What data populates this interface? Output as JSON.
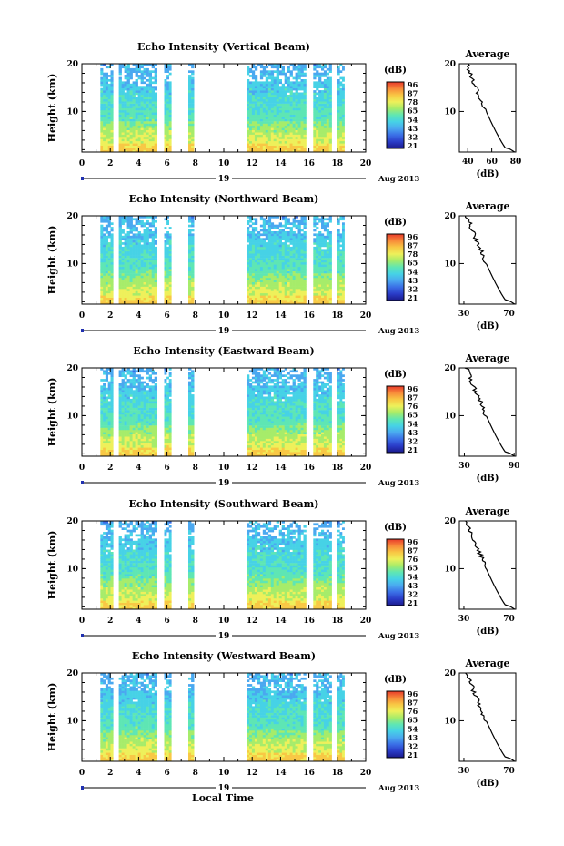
{
  "time_axis": {
    "ticks": [
      "0",
      "2",
      "4",
      "6",
      "8",
      "10",
      "12",
      "14",
      "16",
      "18",
      "20"
    ],
    "day_label": "19",
    "date_label": "Aug 2013",
    "xlabel": "Local Time"
  },
  "colorbar": {
    "unit": "(dB)",
    "palette": [
      "#1a1a8c",
      "#2a3cc8",
      "#3a6ee6",
      "#4aa8f0",
      "#46d2e6",
      "#5ee6b4",
      "#a6ec6a",
      "#eef05a",
      "#f8c844",
      "#f88a3a",
      "#e83a2a"
    ]
  },
  "chart_data": [
    {
      "type": "heatmap",
      "title": "Echo Intensity (Vertical Beam)",
      "ylabel": "Height (km)",
      "x_ticks": [
        0,
        2,
        4,
        6,
        8,
        10,
        12,
        14,
        16,
        18,
        20
      ],
      "xlim": [
        0,
        20
      ],
      "ylim": [
        1.5,
        20
      ],
      "y_ticks": [
        10,
        20
      ],
      "data_intervals_hours": [
        [
          1.3,
          2.2
        ],
        [
          2.6,
          5.3
        ],
        [
          5.8,
          6.3
        ],
        [
          7.5,
          7.9
        ],
        [
          11.6,
          15.8
        ],
        [
          16.3,
          17.6
        ],
        [
          18.0,
          18.5
        ]
      ],
      "colorbar_ticks": [
        "96",
        "87",
        "78",
        "65",
        "54",
        "43",
        "32",
        "21"
      ],
      "average_profile": {
        "title": "Average",
        "xlabel": "(dB)",
        "x_ticks": [
          "40",
          "60",
          "80"
        ],
        "xlim": [
          33,
          80
        ],
        "y_ticks": [
          10,
          20
        ],
        "ylim": [
          1.5,
          20
        ]
      }
    },
    {
      "type": "heatmap",
      "title": "Echo Intensity (Northward Beam)",
      "ylabel": "Height (km)",
      "x_ticks": [
        0,
        2,
        4,
        6,
        8,
        10,
        12,
        14,
        16,
        18,
        20
      ],
      "xlim": [
        0,
        20
      ],
      "ylim": [
        1.5,
        20
      ],
      "y_ticks": [
        10,
        20
      ],
      "data_intervals_hours": [
        [
          1.3,
          2.2
        ],
        [
          2.6,
          5.3
        ],
        [
          5.8,
          6.3
        ],
        [
          7.5,
          7.9
        ],
        [
          11.6,
          15.8
        ],
        [
          16.3,
          17.6
        ],
        [
          18.0,
          18.5
        ]
      ],
      "colorbar_ticks": [
        "96",
        "87",
        "78",
        "65",
        "54",
        "43",
        "32",
        "21"
      ],
      "average_profile": {
        "title": "Average",
        "xlabel": "(dB)",
        "x_ticks": [
          "30",
          "70"
        ],
        "xlim": [
          26,
          76
        ],
        "y_ticks": [
          10,
          20
        ],
        "ylim": [
          1.5,
          20
        ]
      }
    },
    {
      "type": "heatmap",
      "title": "Echo Intensity (Eastward Beam)",
      "ylabel": "Height (km)",
      "x_ticks": [
        0,
        2,
        4,
        6,
        8,
        10,
        12,
        14,
        16,
        18,
        20
      ],
      "xlim": [
        0,
        20
      ],
      "ylim": [
        1.5,
        20
      ],
      "y_ticks": [
        10,
        20
      ],
      "data_intervals_hours": [
        [
          1.3,
          2.2
        ],
        [
          2.6,
          5.3
        ],
        [
          5.8,
          6.3
        ],
        [
          7.5,
          7.9
        ],
        [
          11.6,
          15.8
        ],
        [
          16.3,
          17.6
        ],
        [
          18.0,
          18.5
        ]
      ],
      "colorbar_ticks": [
        "96",
        "87",
        "76",
        "65",
        "54",
        "43",
        "32",
        "21"
      ],
      "average_profile": {
        "title": "Average",
        "xlabel": "(dB)",
        "x_ticks": [
          "30",
          "90"
        ],
        "xlim": [
          24,
          92
        ],
        "y_ticks": [
          10,
          20
        ],
        "ylim": [
          1.5,
          20
        ]
      }
    },
    {
      "type": "heatmap",
      "title": "Echo Intensity (Southward Beam)",
      "ylabel": "Height (km)",
      "x_ticks": [
        0,
        2,
        4,
        6,
        8,
        10,
        12,
        14,
        16,
        18,
        20
      ],
      "xlim": [
        0,
        20
      ],
      "ylim": [
        1.5,
        20
      ],
      "y_ticks": [
        10,
        20
      ],
      "data_intervals_hours": [
        [
          1.3,
          2.2
        ],
        [
          2.6,
          5.3
        ],
        [
          5.8,
          6.3
        ],
        [
          7.5,
          7.9
        ],
        [
          11.6,
          15.8
        ],
        [
          16.3,
          17.6
        ],
        [
          18.0,
          18.5
        ]
      ],
      "colorbar_ticks": [
        "96",
        "87",
        "76",
        "65",
        "54",
        "43",
        "32",
        "21"
      ],
      "average_profile": {
        "title": "Average",
        "xlabel": "(dB)",
        "x_ticks": [
          "30",
          "70"
        ],
        "xlim": [
          26,
          76
        ],
        "y_ticks": [
          10,
          20
        ],
        "ylim": [
          1.5,
          20
        ]
      }
    },
    {
      "type": "heatmap",
      "title": "Echo Intensity (Westward Beam)",
      "ylabel": "Height (km)",
      "x_ticks": [
        0,
        2,
        4,
        6,
        8,
        10,
        12,
        14,
        16,
        18,
        20
      ],
      "xlim": [
        0,
        20
      ],
      "ylim": [
        1.5,
        20
      ],
      "y_ticks": [
        10,
        20
      ],
      "data_intervals_hours": [
        [
          1.3,
          2.2
        ],
        [
          2.6,
          5.3
        ],
        [
          5.8,
          6.3
        ],
        [
          7.5,
          7.9
        ],
        [
          11.6,
          15.8
        ],
        [
          16.3,
          17.6
        ],
        [
          18.0,
          18.5
        ]
      ],
      "colorbar_ticks": [
        "96",
        "87",
        "76",
        "65",
        "54",
        "43",
        "32",
        "21"
      ],
      "average_profile": {
        "title": "Average",
        "xlabel": "(dB)",
        "x_ticks": [
          "30",
          "70"
        ],
        "xlim": [
          26,
          76
        ],
        "y_ticks": [
          10,
          20
        ],
        "ylim": [
          1.5,
          20
        ]
      }
    }
  ]
}
